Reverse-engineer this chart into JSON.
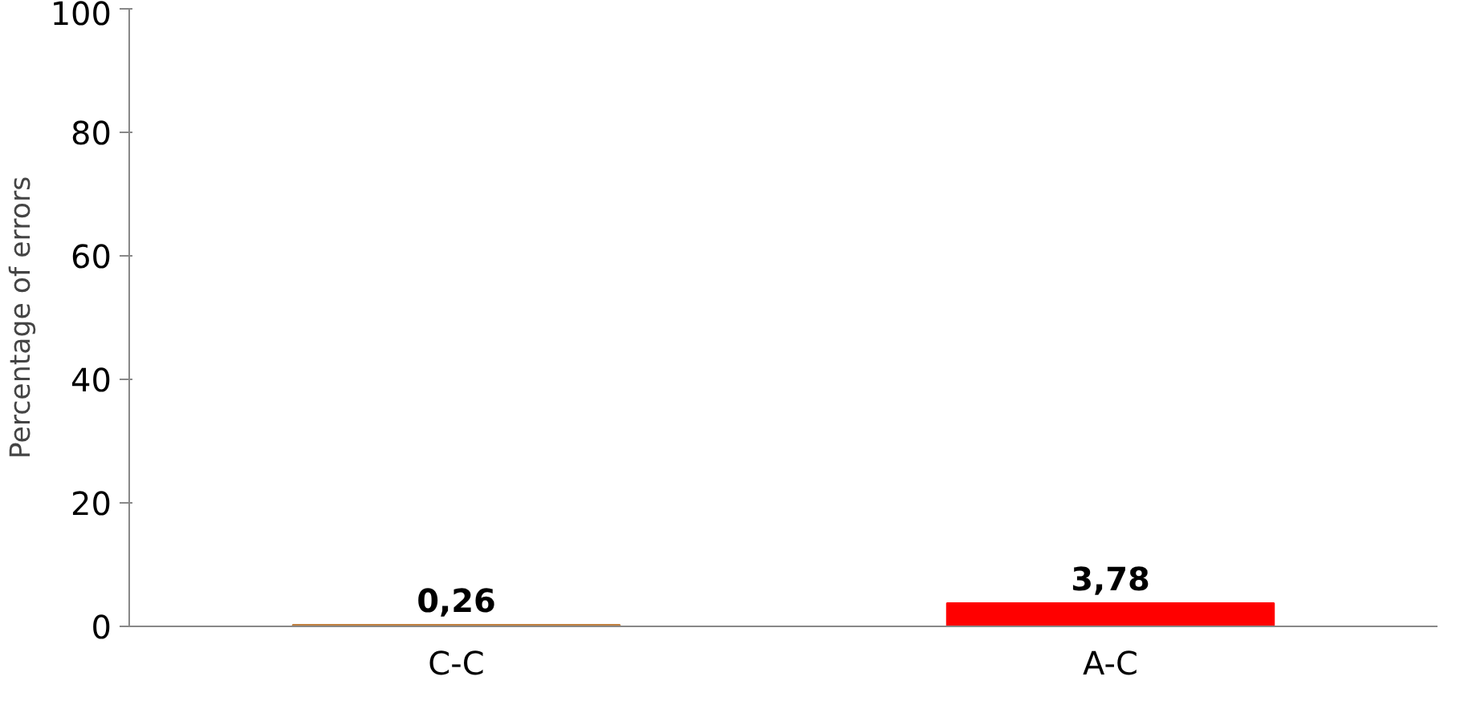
{
  "chart_data": {
    "type": "bar",
    "ylabel": "Percentage of errors",
    "categories": [
      "C-C",
      "A-C"
    ],
    "values": [
      0.26,
      3.78
    ],
    "colors": [
      "#c0803f",
      "#ff0000"
    ],
    "value_labels": [
      "0,26",
      "3,78"
    ],
    "ylim": [
      0,
      100
    ],
    "yticks": [
      0,
      20,
      40,
      60,
      80,
      100
    ],
    "grid": false
  }
}
